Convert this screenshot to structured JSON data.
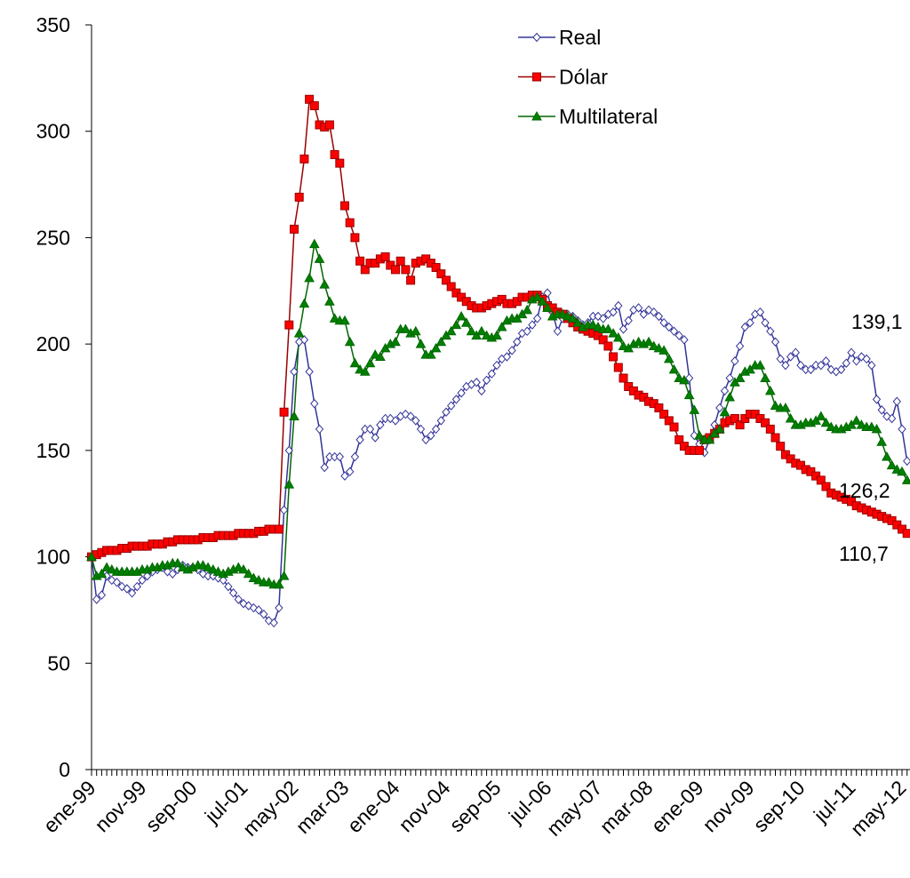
{
  "chart_data": {
    "type": "line",
    "categories": [
      "ene-99",
      null,
      null,
      null,
      null,
      null,
      null,
      null,
      null,
      null,
      "nov-99",
      null,
      null,
      null,
      null,
      null,
      null,
      null,
      null,
      null,
      "sep-00",
      null,
      null,
      null,
      null,
      null,
      null,
      null,
      null,
      null,
      "jul-01",
      null,
      null,
      null,
      null,
      null,
      null,
      null,
      null,
      null,
      "may-02",
      null,
      null,
      null,
      null,
      null,
      null,
      null,
      null,
      null,
      "mar-03",
      null,
      null,
      null,
      null,
      null,
      null,
      null,
      null,
      null,
      "ene-04",
      null,
      null,
      null,
      null,
      null,
      null,
      null,
      null,
      null,
      "nov-04",
      null,
      null,
      null,
      null,
      null,
      null,
      null,
      null,
      null,
      "sep-05",
      null,
      null,
      null,
      null,
      null,
      null,
      null,
      null,
      null,
      "jul-06",
      null,
      null,
      null,
      null,
      null,
      null,
      null,
      null,
      null,
      "may-07",
      null,
      null,
      null,
      null,
      null,
      null,
      null,
      null,
      null,
      "mar-08",
      null,
      null,
      null,
      null,
      null,
      null,
      null,
      null,
      null,
      "ene-09",
      null,
      null,
      null,
      null,
      null,
      null,
      null,
      null,
      null,
      "nov-09",
      null,
      null,
      null,
      null,
      null,
      null,
      null,
      null,
      null,
      "sep-10",
      null,
      null,
      null,
      null,
      null,
      null,
      null,
      null,
      null,
      "jul-11",
      null,
      null,
      null,
      null,
      null,
      null,
      null,
      null,
      null,
      "may-12",
      null
    ],
    "series": [
      {
        "name": "Real",
        "color": "#333399",
        "marker": "diamond",
        "values": [
          100,
          80,
          82,
          91,
          89,
          88,
          86,
          85,
          83,
          86,
          89,
          91,
          93,
          94,
          95,
          93,
          92,
          94,
          96,
          95,
          95,
          94,
          92,
          91,
          91,
          90,
          89,
          86,
          83,
          80,
          78,
          77,
          76,
          75,
          73,
          70,
          69,
          76,
          122,
          150,
          187,
          201,
          202,
          187,
          172,
          160,
          142,
          147,
          147,
          147,
          138,
          140,
          147,
          155,
          160,
          160,
          156,
          162,
          165,
          165,
          164,
          166,
          167,
          166,
          164,
          160,
          155,
          157,
          160,
          164,
          168,
          171,
          174,
          177,
          180,
          181,
          182,
          178,
          183,
          186,
          190,
          193,
          194,
          197,
          201,
          205,
          206,
          209,
          212,
          222,
          224,
          215,
          206,
          212,
          214,
          213,
          211,
          209,
          210,
          213,
          213,
          212,
          214,
          215,
          218,
          207,
          211,
          216,
          217,
          214,
          216,
          215,
          213,
          210,
          208,
          206,
          204,
          202,
          184,
          157,
          153,
          149,
          155,
          162,
          170,
          178,
          184,
          192,
          199,
          208,
          210,
          214,
          215,
          210,
          206,
          201,
          193,
          190,
          194,
          196,
          190,
          188,
          188,
          190,
          190,
          192,
          188,
          187,
          188,
          191,
          196,
          192,
          194,
          193,
          190,
          174,
          169,
          166,
          165,
          173,
          160,
          145
        ]
      },
      {
        "name": "Dólar",
        "color": "#ff0000",
        "line": "#990000",
        "marker": "square",
        "values": [
          100,
          101,
          102,
          103,
          103,
          103,
          104,
          104,
          105,
          105,
          105,
          105,
          106,
          106,
          106,
          107,
          107,
          108,
          108,
          108,
          108,
          108,
          109,
          109,
          109,
          110,
          110,
          110,
          110,
          111,
          111,
          111,
          111,
          112,
          112,
          113,
          113,
          113,
          168,
          209,
          254,
          269,
          287,
          315,
          312,
          303,
          302,
          303,
          289,
          285,
          265,
          257,
          250,
          239,
          235,
          238,
          238,
          240,
          241,
          237,
          235,
          239,
          235,
          230,
          238,
          239,
          240,
          238,
          236,
          233,
          230,
          227,
          224,
          222,
          220,
          218,
          217,
          217,
          218,
          219,
          220,
          221,
          219,
          219,
          220,
          222,
          222,
          223,
          223,
          221,
          218,
          217,
          215,
          214,
          212,
          210,
          208,
          207,
          206,
          205,
          204,
          202,
          199,
          194,
          189,
          184,
          180,
          178,
          176,
          175,
          173,
          172,
          170,
          167,
          164,
          161,
          155,
          152,
          150,
          150,
          150,
          155,
          156,
          158,
          160,
          163,
          164,
          165,
          162,
          165,
          167,
          167,
          165,
          163,
          160,
          156,
          152,
          148,
          146,
          144,
          143,
          141,
          140,
          138,
          136,
          133,
          130,
          129,
          128,
          127,
          126,
          124,
          123,
          122,
          121,
          120,
          119,
          118,
          117,
          115,
          113,
          111
        ]
      },
      {
        "name": "Multilateral",
        "color": "#008000",
        "line": "#006600",
        "marker": "triangle",
        "values": [
          100,
          91,
          92,
          95,
          94,
          93,
          93,
          93,
          93,
          93,
          94,
          94,
          95,
          95,
          96,
          96,
          97,
          97,
          95,
          94,
          95,
          96,
          96,
          95,
          94,
          93,
          92,
          93,
          94,
          95,
          94,
          92,
          90,
          89,
          88,
          88,
          87,
          87,
          91,
          134,
          166,
          205,
          219,
          231,
          247,
          240,
          228,
          220,
          212,
          211,
          211,
          201,
          191,
          188,
          187,
          191,
          195,
          194,
          198,
          200,
          201,
          207,
          207,
          205,
          206,
          200,
          195,
          195,
          198,
          201,
          204,
          206,
          209,
          213,
          210,
          206,
          204,
          206,
          204,
          203,
          204,
          208,
          211,
          212,
          212,
          214,
          216,
          221,
          222,
          220,
          217,
          213,
          214,
          214,
          213,
          212,
          210,
          208,
          209,
          209,
          208,
          207,
          207,
          205,
          203,
          199,
          198,
          200,
          201,
          200,
          201,
          199,
          198,
          197,
          193,
          188,
          184,
          183,
          176,
          169,
          157,
          155,
          155,
          158,
          160,
          168,
          175,
          182,
          184,
          187,
          188,
          190,
          190,
          184,
          178,
          171,
          170,
          170,
          165,
          162,
          162,
          163,
          163,
          164,
          166,
          163,
          161,
          160,
          160,
          161,
          162,
          164,
          162,
          161,
          161,
          160,
          154,
          147,
          143,
          141,
          140,
          136
        ]
      }
    ],
    "annotations": [
      "139,1",
      "126,2",
      "110,7"
    ],
    "ylim": [
      0,
      350
    ],
    "yticks": [
      0,
      50,
      100,
      150,
      200,
      250,
      300,
      350
    ],
    "grid": false,
    "legend": "top-right"
  }
}
